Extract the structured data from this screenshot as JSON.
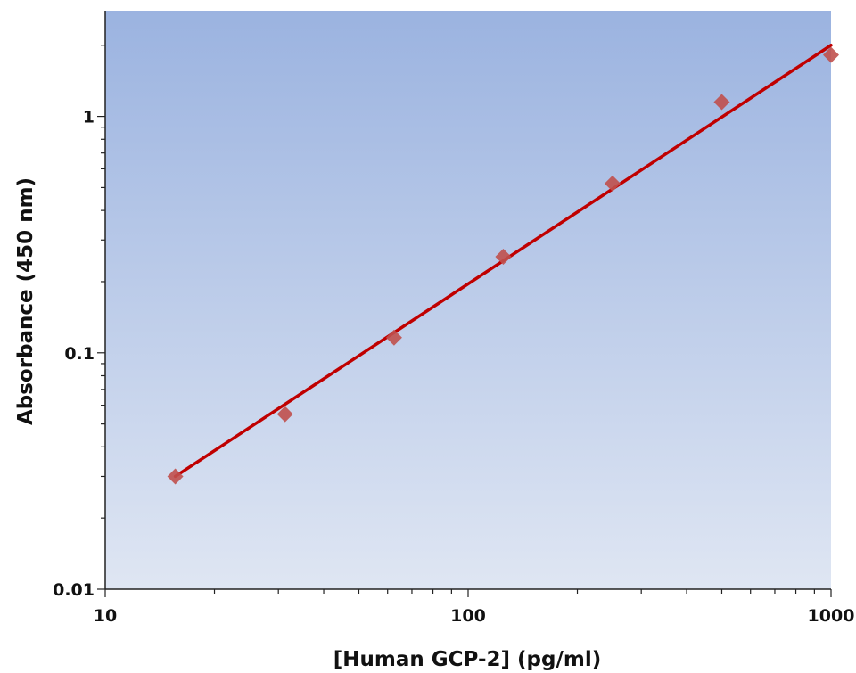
{
  "chart_data": {
    "type": "scatter",
    "title": "",
    "xlabel": "[Human GCP-2] (pg/ml)",
    "ylabel": "Absorbance (450 nm)",
    "x_scale": "log",
    "y_scale": "log",
    "xlim": [
      10,
      1000
    ],
    "ylim": [
      0.01,
      2.8
    ],
    "x_ticks": [
      {
        "value": 10,
        "label": "10"
      },
      {
        "value": 100,
        "label": "100"
      },
      {
        "value": 1000,
        "label": "1000"
      }
    ],
    "y_ticks": [
      {
        "value": 0.01,
        "label": "0.01"
      },
      {
        "value": 0.1,
        "label": "0.1"
      },
      {
        "value": 1,
        "label": "1"
      }
    ],
    "grid": false,
    "legend": "none",
    "series": [
      {
        "marker": "diamond",
        "color": "#c0504d",
        "points": [
          {
            "x": 15.6,
            "y": 0.03
          },
          {
            "x": 31.3,
            "y": 0.055
          },
          {
            "x": 62.5,
            "y": 0.116
          },
          {
            "x": 125,
            "y": 0.255
          },
          {
            "x": 250,
            "y": 0.52
          },
          {
            "x": 500,
            "y": 1.15
          },
          {
            "x": 1000,
            "y": 1.82
          }
        ]
      }
    ],
    "fit_line": {
      "color": "#c00000",
      "points": [
        {
          "x": 15.6,
          "y": 0.03
        },
        {
          "x": 1000,
          "y": 2.0
        }
      ]
    },
    "background_gradient": {
      "top": "#9bb3e0",
      "bottom": "#dfe6f3"
    }
  }
}
